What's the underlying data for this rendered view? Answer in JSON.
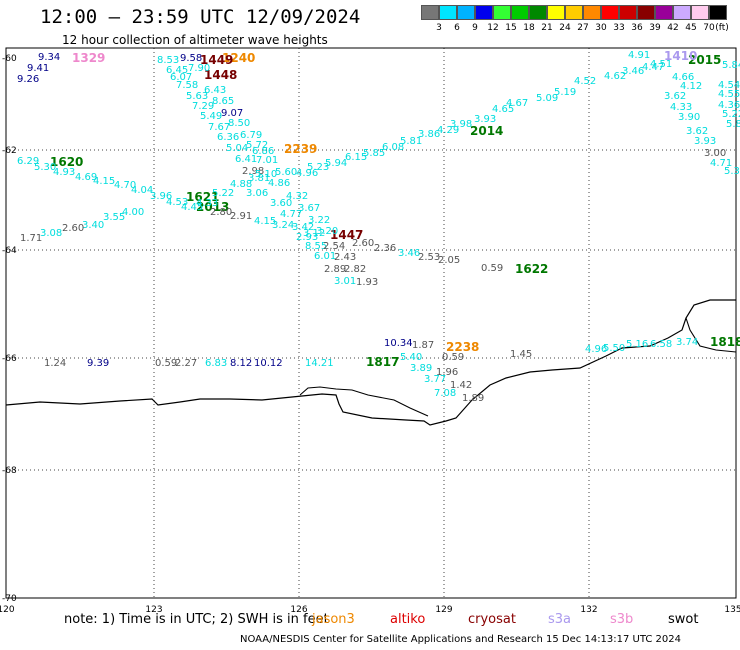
{
  "title": "12:00 — 23:59 UTC 12/09/2024",
  "subtitle": "12 hour collection of altimeter wave heights",
  "legend": {
    "unit": "(ft)",
    "bins": [
      {
        "label": "3",
        "color": "#777777"
      },
      {
        "label": "6",
        "color": "#00e5ff"
      },
      {
        "label": "9",
        "color": "#00b3ff"
      },
      {
        "label": "12",
        "color": "#0000ee"
      },
      {
        "label": "15",
        "color": "#33ff33"
      },
      {
        "label": "18",
        "color": "#00cc00"
      },
      {
        "label": "21",
        "color": "#008800"
      },
      {
        "label": "24",
        "color": "#ffff00"
      },
      {
        "label": "27",
        "color": "#ffcc00"
      },
      {
        "label": "30",
        "color": "#ff8800"
      },
      {
        "label": "33",
        "color": "#ff0000"
      },
      {
        "label": "36",
        "color": "#cc0000"
      },
      {
        "label": "39",
        "color": "#880000"
      },
      {
        "label": "42",
        "color": "#990099"
      },
      {
        "label": "45",
        "color": "#ccaaff"
      },
      {
        "label": "70",
        "color": "#ffccee"
      },
      {
        "label": "",
        "color": "#000000"
      }
    ]
  },
  "axes": {
    "lat_labels": [
      "-60",
      "-62",
      "-64",
      "-66",
      "-68",
      "-70"
    ],
    "lon_labels": [
      "120",
      "123",
      "126",
      "129",
      "132",
      "135"
    ]
  },
  "colors": {
    "cyan": "#00dddd",
    "gray": "#555555",
    "navy": "#000088",
    "green": "#007700",
    "maroon": "#770000",
    "orange": "#ee8800",
    "pink": "#ee88cc",
    "lavender": "#aa99ee"
  },
  "pass_labels": [
    {
      "text": "1329",
      "color": "pink"
    },
    {
      "text": "1240",
      "color": "orange"
    },
    {
      "text": "1449",
      "color": "maroon"
    },
    {
      "text": "1448",
      "color": "maroon"
    },
    {
      "text": "2015",
      "color": "green"
    },
    {
      "text": "1410",
      "color": "lavender"
    },
    {
      "text": "2014",
      "color": "green"
    },
    {
      "text": "1620",
      "color": "green"
    },
    {
      "text": "2239",
      "color": "orange"
    },
    {
      "text": "1621",
      "color": "green"
    },
    {
      "text": "2013",
      "color": "green"
    },
    {
      "text": "1447",
      "color": "maroon"
    },
    {
      "text": "1622",
      "color": "green"
    },
    {
      "text": "2238",
      "color": "orange"
    },
    {
      "text": "1817",
      "color": "green"
    },
    {
      "text": "1818",
      "color": "green"
    }
  ],
  "observations": [
    {
      "v": "9.34",
      "c": "navy"
    },
    {
      "v": "9.41",
      "c": "navy"
    },
    {
      "v": "9.26",
      "c": "navy"
    },
    {
      "v": "8.53",
      "c": "cyan"
    },
    {
      "v": "9.58",
      "c": "navy"
    },
    {
      "v": "6.45",
      "c": "cyan"
    },
    {
      "v": "7.90",
      "c": "cyan"
    },
    {
      "v": "6.07",
      "c": "cyan"
    },
    {
      "v": "7.58",
      "c": "cyan"
    },
    {
      "v": "6.43",
      "c": "cyan"
    },
    {
      "v": "5.63",
      "c": "cyan"
    },
    {
      "v": "8.65",
      "c": "cyan"
    },
    {
      "v": "7.29",
      "c": "cyan"
    },
    {
      "v": "9.07",
      "c": "navy"
    },
    {
      "v": "5.49",
      "c": "cyan"
    },
    {
      "v": "8.50",
      "c": "cyan"
    },
    {
      "v": "7.67",
      "c": "cyan"
    },
    {
      "v": "6.79",
      "c": "cyan"
    },
    {
      "v": "6.36",
      "c": "cyan"
    },
    {
      "v": "5.72",
      "c": "cyan"
    },
    {
      "v": "5.04",
      "c": "cyan"
    },
    {
      "v": "6.86",
      "c": "cyan"
    },
    {
      "v": "6.41",
      "c": "cyan"
    },
    {
      "v": "7.01",
      "c": "cyan"
    },
    {
      "v": "2.98",
      "c": "gray"
    },
    {
      "v": "5.10",
      "c": "cyan"
    },
    {
      "v": "5.60",
      "c": "cyan"
    },
    {
      "v": "4.96",
      "c": "cyan"
    },
    {
      "v": "6.29",
      "c": "cyan"
    },
    {
      "v": "5.30",
      "c": "cyan"
    },
    {
      "v": "4.93",
      "c": "cyan"
    },
    {
      "v": "4.69",
      "c": "cyan"
    },
    {
      "v": "4.15",
      "c": "cyan"
    },
    {
      "v": "4.70",
      "c": "cyan"
    },
    {
      "v": "4.04",
      "c": "cyan"
    },
    {
      "v": "3.96",
      "c": "cyan"
    },
    {
      "v": "4.53",
      "c": "cyan"
    },
    {
      "v": "4.45",
      "c": "cyan"
    },
    {
      "v": "4.33",
      "c": "cyan"
    },
    {
      "v": "4.00",
      "c": "cyan"
    },
    {
      "v": "3.55",
      "c": "cyan"
    },
    {
      "v": "3.40",
      "c": "cyan"
    },
    {
      "v": "3.08",
      "c": "cyan"
    },
    {
      "v": "2.60",
      "c": "gray"
    },
    {
      "v": "1.71",
      "c": "gray"
    },
    {
      "v": "2.80",
      "c": "gray"
    },
    {
      "v": "2.91",
      "c": "gray"
    },
    {
      "v": "4.15",
      "c": "cyan"
    },
    {
      "v": "3.24",
      "c": "cyan"
    },
    {
      "v": "5.22",
      "c": "cyan"
    },
    {
      "v": "4.88",
      "c": "cyan"
    },
    {
      "v": "3.81",
      "c": "cyan"
    },
    {
      "v": "4.86",
      "c": "cyan"
    },
    {
      "v": "3.06",
      "c": "cyan"
    },
    {
      "v": "4.32",
      "c": "cyan"
    },
    {
      "v": "3.60",
      "c": "cyan"
    },
    {
      "v": "3.67",
      "c": "cyan"
    },
    {
      "v": "4.77",
      "c": "cyan"
    },
    {
      "v": "3.22",
      "c": "cyan"
    },
    {
      "v": "3.42",
      "c": "cyan"
    },
    {
      "v": "3.12",
      "c": "cyan"
    },
    {
      "v": "3.20",
      "c": "cyan"
    },
    {
      "v": "2.93",
      "c": "cyan"
    },
    {
      "v": "8.55",
      "c": "cyan"
    },
    {
      "v": "2.54",
      "c": "gray"
    },
    {
      "v": "2.60",
      "c": "gray"
    },
    {
      "v": "2.36",
      "c": "gray"
    },
    {
      "v": "6.01",
      "c": "cyan"
    },
    {
      "v": "2.43",
      "c": "gray"
    },
    {
      "v": "3.46",
      "c": "cyan"
    },
    {
      "v": "2.53",
      "c": "gray"
    },
    {
      "v": "2.05",
      "c": "gray"
    },
    {
      "v": "2.89",
      "c": "gray"
    },
    {
      "v": "2.82",
      "c": "gray"
    },
    {
      "v": "3.01",
      "c": "cyan"
    },
    {
      "v": "1.93",
      "c": "gray"
    },
    {
      "v": "0.59",
      "c": "gray"
    },
    {
      "v": "5.23",
      "c": "cyan"
    },
    {
      "v": "5.94",
      "c": "cyan"
    },
    {
      "v": "6.15",
      "c": "cyan"
    },
    {
      "v": "5.85",
      "c": "cyan"
    },
    {
      "v": "6.08",
      "c": "cyan"
    },
    {
      "v": "5.81",
      "c": "cyan"
    },
    {
      "v": "3.86",
      "c": "cyan"
    },
    {
      "v": "4.29",
      "c": "cyan"
    },
    {
      "v": "3.98",
      "c": "cyan"
    },
    {
      "v": "3.93",
      "c": "cyan"
    },
    {
      "v": "4.65",
      "c": "cyan"
    },
    {
      "v": "4.67",
      "c": "cyan"
    },
    {
      "v": "5.09",
      "c": "cyan"
    },
    {
      "v": "5.19",
      "c": "cyan"
    },
    {
      "v": "4.52",
      "c": "cyan"
    },
    {
      "v": "4.62",
      "c": "cyan"
    },
    {
      "v": "3.46",
      "c": "cyan"
    },
    {
      "v": "4.47",
      "c": "cyan"
    },
    {
      "v": "4.91",
      "c": "cyan"
    },
    {
      "v": "4.51",
      "c": "cyan"
    },
    {
      "v": "4.66",
      "c": "cyan"
    },
    {
      "v": "4.12",
      "c": "cyan"
    },
    {
      "v": "3.62",
      "c": "cyan"
    },
    {
      "v": "4.33",
      "c": "cyan"
    },
    {
      "v": "3.90",
      "c": "cyan"
    },
    {
      "v": "3.62",
      "c": "cyan"
    },
    {
      "v": "3.93",
      "c": "cyan"
    },
    {
      "v": "3.00",
      "c": "gray"
    },
    {
      "v": "5.84",
      "c": "cyan"
    },
    {
      "v": "4.54",
      "c": "cyan"
    },
    {
      "v": "4.55",
      "c": "cyan"
    },
    {
      "v": "4.36",
      "c": "cyan"
    },
    {
      "v": "5.22",
      "c": "cyan"
    },
    {
      "v": "5.86",
      "c": "cyan"
    },
    {
      "v": "4.71",
      "c": "cyan"
    },
    {
      "v": "5.36",
      "c": "cyan"
    },
    {
      "v": "1.24",
      "c": "gray"
    },
    {
      "v": "9.39",
      "c": "navy"
    },
    {
      "v": "0.59",
      "c": "gray"
    },
    {
      "v": "2.27",
      "c": "gray"
    },
    {
      "v": "6.83",
      "c": "cyan"
    },
    {
      "v": "8.12",
      "c": "navy"
    },
    {
      "v": "10.12",
      "c": "navy"
    },
    {
      "v": "14.21",
      "c": "cyan"
    },
    {
      "v": "10.34",
      "c": "navy"
    },
    {
      "v": "1.87",
      "c": "gray"
    },
    {
      "v": "5.40",
      "c": "cyan"
    },
    {
      "v": "0.59",
      "c": "gray"
    },
    {
      "v": "3.89",
      "c": "cyan"
    },
    {
      "v": "3.77",
      "c": "cyan"
    },
    {
      "v": "1.96",
      "c": "gray"
    },
    {
      "v": "1.42",
      "c": "gray"
    },
    {
      "v": "7.08",
      "c": "cyan"
    },
    {
      "v": "1.89",
      "c": "gray"
    },
    {
      "v": "1.45",
      "c": "gray"
    },
    {
      "v": "4.96",
      "c": "cyan"
    },
    {
      "v": "5.50",
      "c": "cyan"
    },
    {
      "v": "5.16",
      "c": "cyan"
    },
    {
      "v": "6.58",
      "c": "cyan"
    },
    {
      "v": "3.74",
      "c": "cyan"
    }
  ],
  "note": {
    "text": "note: 1) Time is in UTC; 2) SWH is in feet",
    "satellites": [
      {
        "name": "jason3",
        "color": "#007700"
      },
      {
        "name": "altiko",
        "color": "#ee8800"
      },
      {
        "name": "cryosat",
        "color": "#dd0000"
      },
      {
        "name": "s3a",
        "color": "#880000"
      },
      {
        "name": "s3b",
        "color": "#aa99ee"
      },
      {
        "name": "swot",
        "color": "#ee88cc"
      }
    ]
  },
  "credit": "NOAA/NESDIS Center for Satellite Applications and Research   15 Dec 14:13:17 UTC 2024"
}
